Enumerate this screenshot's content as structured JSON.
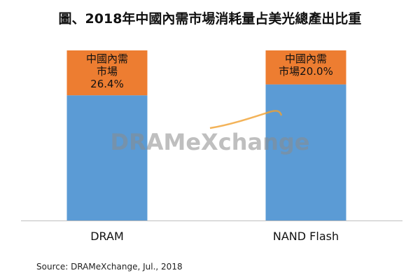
{
  "chart_data": {
    "type": "bar",
    "stacked": true,
    "title": "圖、2018年中國內需市場消耗量占美光總產出比重",
    "categories": [
      "DRAM",
      "NAND Flash"
    ],
    "series": [
      {
        "name": "",
        "color": "#5b9bd5",
        "values": [
          73.6,
          80.0
        ],
        "labels": [
          "",
          ""
        ]
      },
      {
        "name": "中國內需市場",
        "color": "#ed7d31",
        "values": [
          26.4,
          20.0
        ],
        "labels": [
          "中國內需\n市場\n26.4%",
          "中國內需\n市場20.0%"
        ]
      }
    ],
    "ylim": [
      0,
      100
    ],
    "grid": false,
    "legend": "none",
    "watermark": "DRAMeXchange"
  },
  "source": "Source: DRAMeXchange, Jul., 2018"
}
